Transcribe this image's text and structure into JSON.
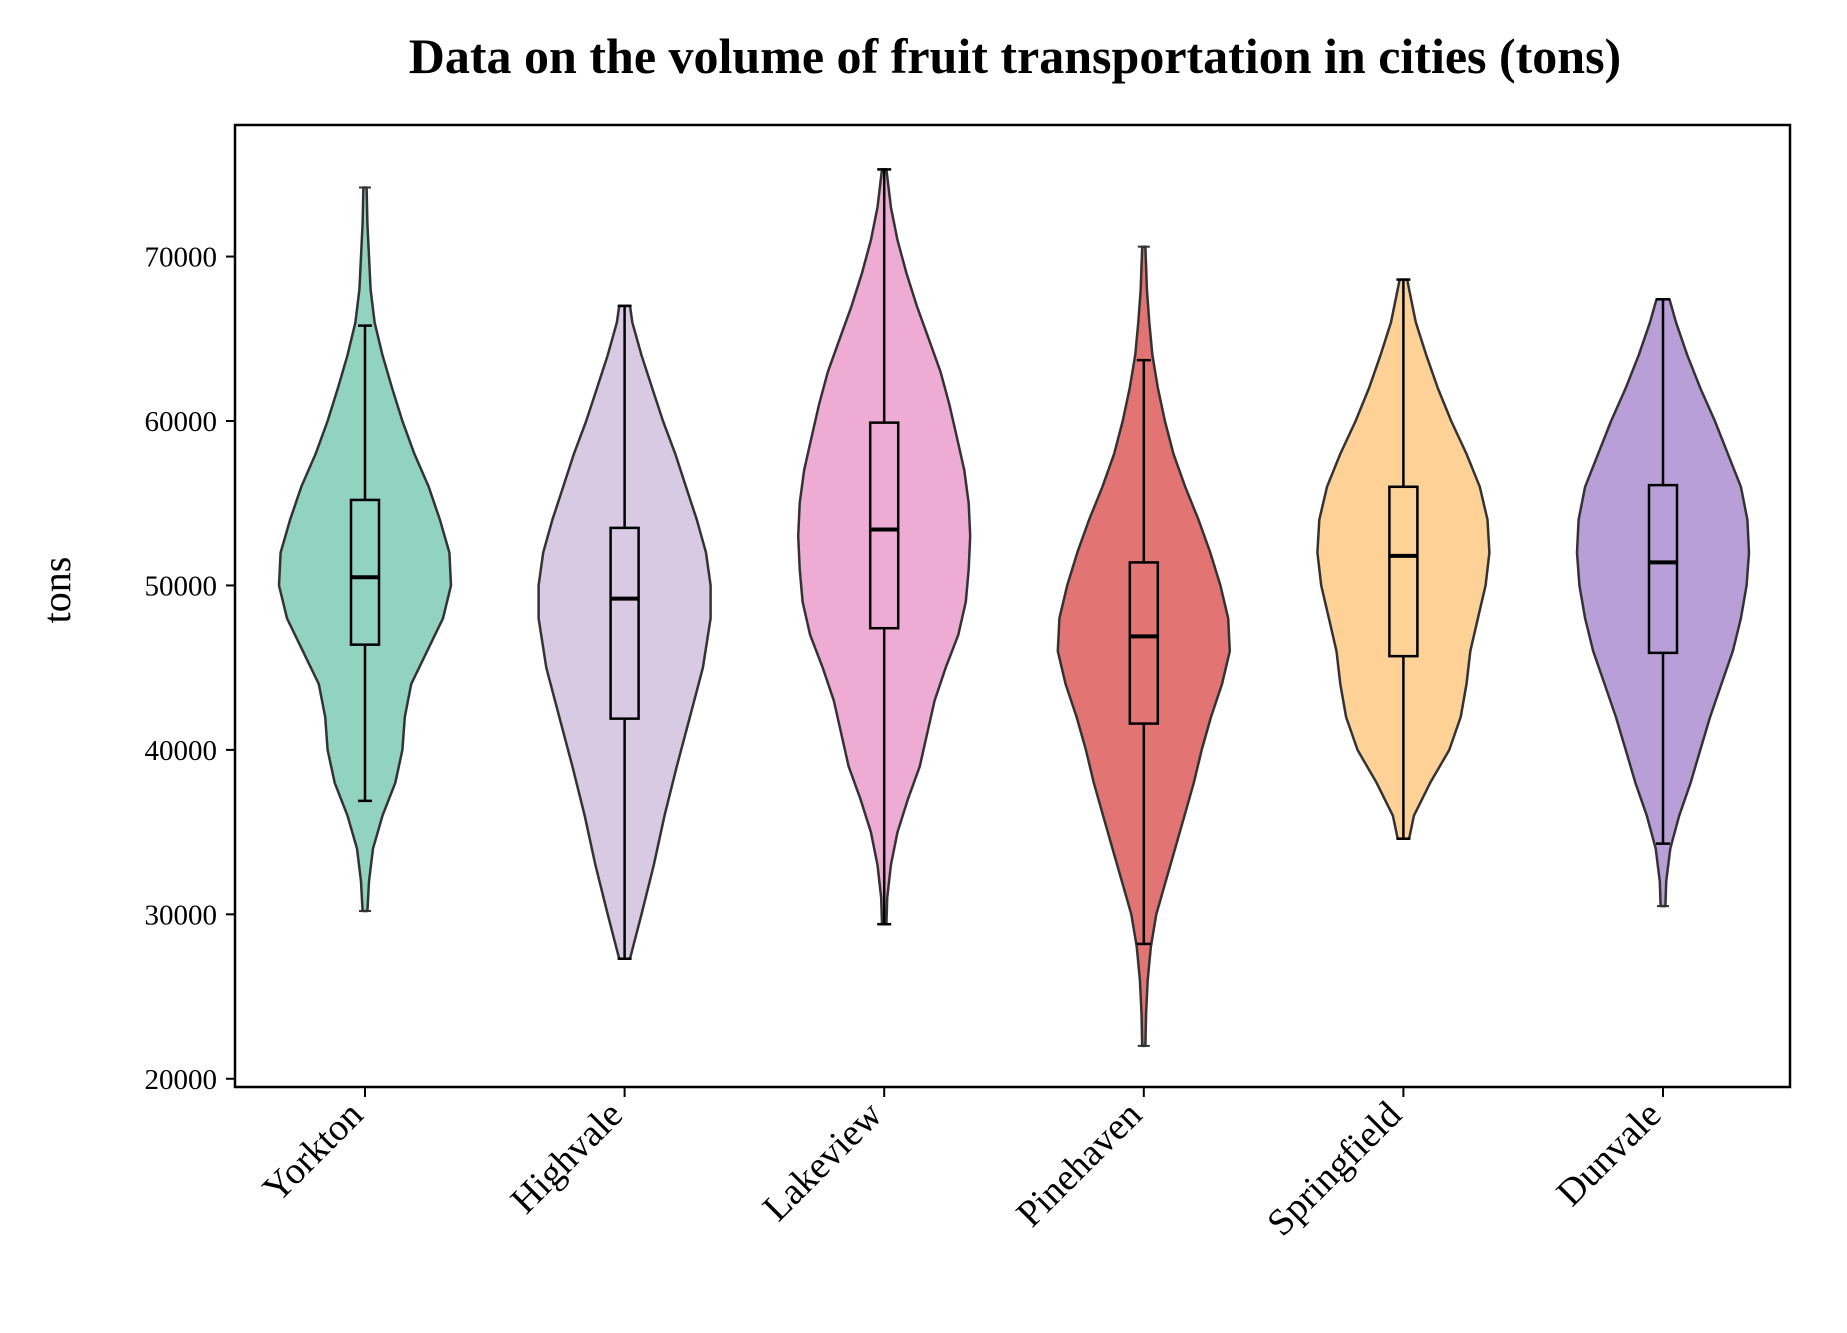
{
  "chart_data": {
    "type": "violin",
    "title": "Data on the volume of fruit transportation in cities (tons)",
    "xlabel": "",
    "ylabel": "tons",
    "ylim": [
      19500,
      78000
    ],
    "yticks": [
      20000,
      30000,
      40000,
      50000,
      60000,
      70000
    ],
    "grid": false,
    "legend": "none",
    "categories": [
      "Yorkton",
      "Highvale",
      "Lakeview",
      "Pinehaven",
      "Springfield",
      "Dunvale"
    ],
    "series": [
      {
        "category": "Yorkton",
        "color": "#66c2a5",
        "min": 30200,
        "max": 74200,
        "whisker_low": 36900,
        "whisker_high": 65800,
        "q1": 46400,
        "median": 50500,
        "q3": 55200,
        "density": [
          [
            30200,
            3
          ],
          [
            32000,
            5
          ],
          [
            34000,
            10
          ],
          [
            36000,
            22
          ],
          [
            38000,
            38
          ],
          [
            40000,
            47
          ],
          [
            42000,
            50
          ],
          [
            44000,
            58
          ],
          [
            46000,
            78
          ],
          [
            48000,
            98
          ],
          [
            50000,
            108
          ],
          [
            52000,
            106
          ],
          [
            54000,
            94
          ],
          [
            56000,
            80
          ],
          [
            58000,
            62
          ],
          [
            60000,
            47
          ],
          [
            62000,
            34
          ],
          [
            64000,
            22
          ],
          [
            66000,
            12
          ],
          [
            68000,
            7
          ],
          [
            70000,
            5
          ],
          [
            72000,
            3
          ],
          [
            74200,
            2
          ]
        ]
      },
      {
        "category": "Highvale",
        "color": "#cbb6d8",
        "min": 27300,
        "max": 67000,
        "whisker_low": 27300,
        "whisker_high": 67000,
        "q1": 41900,
        "median": 49200,
        "q3": 53500,
        "density": [
          [
            27300,
            7
          ],
          [
            30000,
            22
          ],
          [
            33000,
            38
          ],
          [
            36000,
            52
          ],
          [
            39000,
            68
          ],
          [
            42000,
            85
          ],
          [
            45000,
            102
          ],
          [
            48000,
            112
          ],
          [
            50000,
            112
          ],
          [
            52000,
            106
          ],
          [
            54000,
            94
          ],
          [
            56000,
            80
          ],
          [
            58000,
            66
          ],
          [
            60000,
            50
          ],
          [
            62000,
            36
          ],
          [
            64000,
            22
          ],
          [
            66000,
            10
          ],
          [
            67000,
            7
          ]
        ]
      },
      {
        "category": "Lakeview",
        "color": "#e78ac3",
        "min": 29400,
        "max": 75300,
        "whisker_low": 29400,
        "whisker_high": 75300,
        "q1": 47400,
        "median": 53400,
        "q3": 59900,
        "density": [
          [
            29400,
            3
          ],
          [
            31000,
            4
          ],
          [
            33000,
            9
          ],
          [
            35000,
            18
          ],
          [
            37000,
            32
          ],
          [
            39000,
            48
          ],
          [
            41000,
            58
          ],
          [
            43000,
            68
          ],
          [
            45000,
            83
          ],
          [
            47000,
            100
          ],
          [
            49000,
            110
          ],
          [
            51000,
            114
          ],
          [
            53000,
            116
          ],
          [
            55000,
            114
          ],
          [
            57000,
            108
          ],
          [
            59000,
            98
          ],
          [
            61000,
            88
          ],
          [
            63000,
            76
          ],
          [
            65000,
            60
          ],
          [
            67000,
            44
          ],
          [
            69000,
            30
          ],
          [
            71000,
            18
          ],
          [
            73000,
            9
          ],
          [
            75300,
            3
          ]
        ]
      },
      {
        "category": "Pinehaven",
        "color": "#d73f3f",
        "min": 22000,
        "max": 70600,
        "whisker_low": 28200,
        "whisker_high": 63700,
        "q1": 41600,
        "median": 46900,
        "q3": 51400,
        "density": [
          [
            22000,
            2
          ],
          [
            24000,
            3
          ],
          [
            26000,
            5
          ],
          [
            28000,
            9
          ],
          [
            30000,
            16
          ],
          [
            32000,
            28
          ],
          [
            34000,
            40
          ],
          [
            36000,
            52
          ],
          [
            38000,
            64
          ],
          [
            40000,
            74
          ],
          [
            42000,
            86
          ],
          [
            44000,
            100
          ],
          [
            46000,
            110
          ],
          [
            48000,
            108
          ],
          [
            50000,
            98
          ],
          [
            52000,
            85
          ],
          [
            54000,
            70
          ],
          [
            56000,
            53
          ],
          [
            58000,
            38
          ],
          [
            60000,
            27
          ],
          [
            62000,
            18
          ],
          [
            64000,
            11
          ],
          [
            66000,
            7
          ],
          [
            68000,
            4
          ],
          [
            70600,
            2
          ]
        ]
      },
      {
        "category": "Springfield",
        "color": "#fdbf6f",
        "min": 34600,
        "max": 68600,
        "whisker_low": 34600,
        "whisker_high": 68600,
        "q1": 45700,
        "median": 51800,
        "q3": 56000,
        "density": [
          [
            34600,
            6
          ],
          [
            36000,
            11
          ],
          [
            38000,
            28
          ],
          [
            40000,
            48
          ],
          [
            42000,
            60
          ],
          [
            44000,
            66
          ],
          [
            46000,
            70
          ],
          [
            48000,
            78
          ],
          [
            50000,
            86
          ],
          [
            52000,
            90
          ],
          [
            54000,
            88
          ],
          [
            56000,
            80
          ],
          [
            58000,
            66
          ],
          [
            60000,
            50
          ],
          [
            62000,
            36
          ],
          [
            64000,
            24
          ],
          [
            66000,
            13
          ],
          [
            68000,
            6
          ],
          [
            68600,
            4
          ]
        ]
      },
      {
        "category": "Dunvale",
        "color": "#9e7ac8",
        "min": 30500,
        "max": 67400,
        "whisker_low": 34300,
        "whisker_high": 67400,
        "q1": 45900,
        "median": 51400,
        "q3": 56100,
        "density": [
          [
            30500,
            3
          ],
          [
            32000,
            4
          ],
          [
            34000,
            9
          ],
          [
            36000,
            20
          ],
          [
            38000,
            34
          ],
          [
            40000,
            46
          ],
          [
            42000,
            58
          ],
          [
            44000,
            72
          ],
          [
            46000,
            86
          ],
          [
            48000,
            96
          ],
          [
            50000,
            103
          ],
          [
            52000,
            106
          ],
          [
            54000,
            104
          ],
          [
            56000,
            96
          ],
          [
            58000,
            80
          ],
          [
            60000,
            64
          ],
          [
            62000,
            46
          ],
          [
            64000,
            30
          ],
          [
            66000,
            16
          ],
          [
            67400,
            8
          ]
        ]
      }
    ]
  }
}
